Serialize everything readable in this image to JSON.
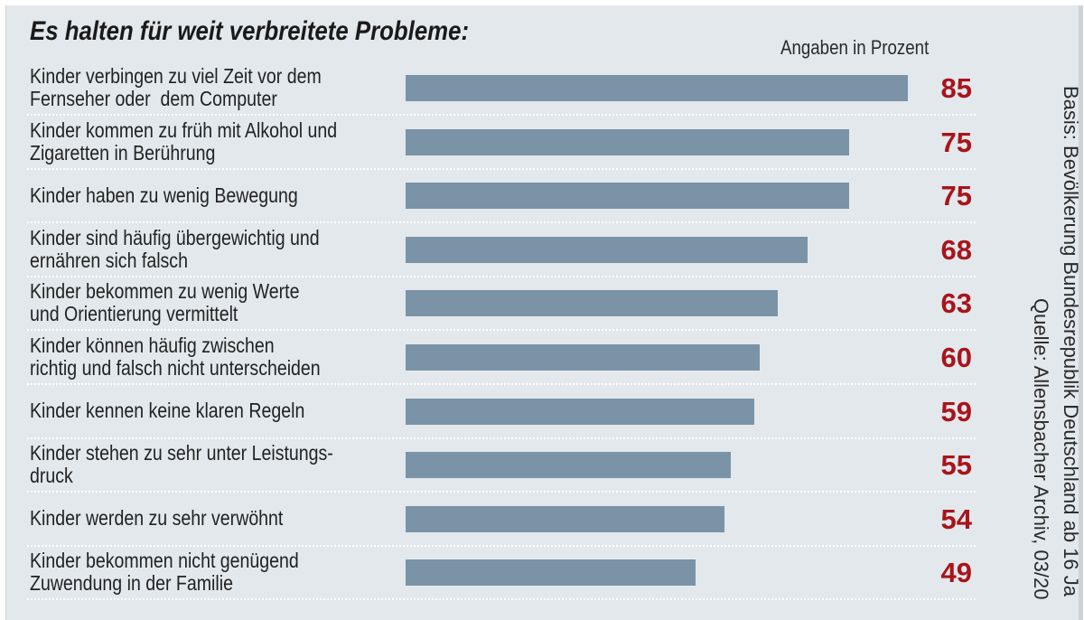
{
  "chart_data": {
    "type": "bar",
    "orientation": "horizontal",
    "title": "Es halten für weit verbreitete Probleme:",
    "unit_label": "Angaben in Prozent",
    "categories": [
      "Kinder verbingen zu viel Zeit vor dem\nFernseher oder  dem Computer",
      "Kinder kommen zu früh mit Alkohol und\nZigaretten in Berührung",
      "Kinder haben zu wenig Bewegung",
      "Kinder sind häufig übergewichtig und\nernähren sich falsch",
      "Kinder bekommen zu wenig Werte\nund Orientierung vermittelt",
      "Kinder können häufig zwischen\nrichtig und falsch nicht unterscheiden",
      "Kinder kennen keine klaren Regeln",
      "Kinder stehen zu sehr unter Leistungs-\ndruck",
      "Kinder werden zu sehr verwöhnt",
      "Kinder bekommen nicht genügend\nZuwendung in der Familie"
    ],
    "values": [
      85,
      75,
      75,
      68,
      63,
      60,
      59,
      55,
      54,
      49
    ],
    "xlim": [
      0,
      100
    ],
    "grid": false,
    "bar_color": "#7b93a6",
    "value_color": "#a8141a",
    "background_color": "#e3e8ec"
  },
  "source": {
    "basis": "Basis: Bevölkerung Bundesrepublik Deutschland ab 16 Ja",
    "quelle": "Quelle: Allensbacher Archiv, 03/20"
  }
}
